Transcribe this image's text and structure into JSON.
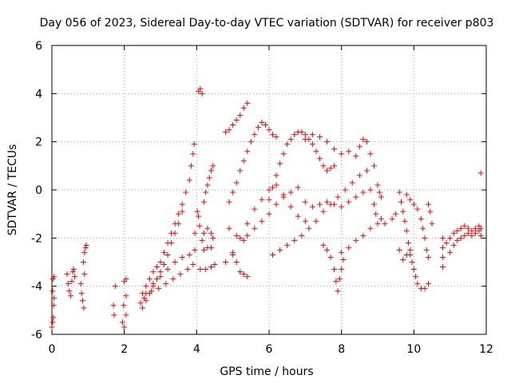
{
  "chart_data": {
    "type": "scatter",
    "title": "Day 056 of 2023, Sidereal Day-to-day VTEC variation (SDTVAR) for receiver p803",
    "xlabel": "GPS time / hours",
    "ylabel": "SDTVAR / TECUs",
    "xlim": [
      0,
      12
    ],
    "ylim": [
      -6,
      6
    ],
    "x_ticks": [
      "0",
      "2",
      "4",
      "6",
      "8",
      "10",
      "12"
    ],
    "y_ticks": [
      "-6",
      "-4",
      "-2",
      "0",
      "2",
      "4",
      "6"
    ],
    "grid": true,
    "marker": "plus",
    "point_color": "#ff0000",
    "series": [
      {
        "points": [
          [
            0.0,
            -5.7
          ],
          [
            0.02,
            -5.5
          ],
          [
            0.04,
            -5.3
          ],
          [
            0.05,
            -4.8
          ],
          [
            0.06,
            -4.5
          ],
          [
            0.02,
            -4.2
          ],
          [
            0.03,
            -3.7
          ],
          [
            0.06,
            -3.6
          ],
          [
            0.42,
            -3.5
          ],
          [
            0.45,
            -3.9
          ],
          [
            0.48,
            -4.2
          ],
          [
            0.52,
            -4.4
          ],
          [
            0.55,
            -3.8
          ],
          [
            0.58,
            -3.4
          ],
          [
            0.6,
            -3.3
          ],
          [
            0.63,
            -3.6
          ],
          [
            0.8,
            -3.9
          ],
          [
            0.82,
            -4.3
          ],
          [
            0.85,
            -4.6
          ],
          [
            0.88,
            -4.9
          ],
          [
            0.9,
            -3.5
          ],
          [
            0.87,
            -3.0
          ],
          [
            0.9,
            -2.6
          ],
          [
            0.93,
            -2.4
          ],
          [
            0.95,
            -2.3
          ],
          [
            1.75,
            -4.0
          ],
          [
            1.7,
            -4.8
          ],
          [
            1.72,
            -5.2
          ],
          [
            1.95,
            -5.5
          ],
          [
            2.0,
            -5.7
          ],
          [
            2.05,
            -5.2
          ],
          [
            1.98,
            -4.8
          ],
          [
            2.05,
            -4.4
          ],
          [
            2.0,
            -3.8
          ],
          [
            2.05,
            -3.7
          ],
          [
            2.45,
            -4.7
          ],
          [
            2.5,
            -4.3
          ],
          [
            2.6,
            -4.0
          ],
          [
            2.7,
            -3.7
          ],
          [
            2.8,
            -3.4
          ],
          [
            2.9,
            -3.2
          ],
          [
            3.0,
            -3.0
          ],
          [
            3.1,
            -2.6
          ],
          [
            3.2,
            -2.2
          ],
          [
            3.3,
            -1.8
          ],
          [
            3.4,
            -1.4
          ],
          [
            3.5,
            -1.0
          ],
          [
            3.6,
            -0.6
          ],
          [
            3.7,
            -0.1
          ],
          [
            3.8,
            0.4
          ],
          [
            3.85,
            1.0
          ],
          [
            3.9,
            1.5
          ],
          [
            3.93,
            1.9
          ],
          [
            2.5,
            -4.9
          ],
          [
            2.6,
            -4.6
          ],
          [
            2.7,
            -4.3
          ],
          [
            2.8,
            -4.0
          ],
          [
            2.9,
            -3.7
          ],
          [
            3.0,
            -3.4
          ],
          [
            3.1,
            -3.1
          ],
          [
            3.2,
            -2.7
          ],
          [
            3.3,
            -2.2
          ],
          [
            3.4,
            -1.8
          ],
          [
            3.5,
            -1.4
          ],
          [
            3.6,
            -0.9
          ],
          [
            2.6,
            -4.3
          ],
          [
            2.8,
            -3.9
          ],
          [
            3.0,
            -3.6
          ],
          [
            3.2,
            -3.3
          ],
          [
            3.4,
            -3.0
          ],
          [
            3.6,
            -2.8
          ],
          [
            3.8,
            -2.7
          ],
          [
            3.95,
            -2.5
          ],
          [
            3.95,
            -1.8
          ],
          [
            2.55,
            -4.5
          ],
          [
            2.75,
            -4.2
          ],
          [
            2.95,
            -4.1
          ],
          [
            3.15,
            -3.9
          ],
          [
            3.35,
            -3.7
          ],
          [
            3.55,
            -3.5
          ],
          [
            3.75,
            -3.3
          ],
          [
            3.9,
            -3.1
          ],
          [
            4.05,
            4.1
          ],
          [
            4.1,
            4.2
          ],
          [
            4.15,
            4.0
          ],
          [
            4.02,
            -0.9
          ],
          [
            4.05,
            -1.1
          ],
          [
            4.08,
            -1.5
          ],
          [
            4.15,
            -2.1
          ],
          [
            4.2,
            -1.8
          ],
          [
            4.3,
            -1.6
          ],
          [
            4.4,
            -1.8
          ],
          [
            4.45,
            -2.0
          ],
          [
            4.2,
            -2.5
          ],
          [
            4.3,
            -2.4
          ],
          [
            4.4,
            -2.4
          ],
          [
            4.1,
            -3.3
          ],
          [
            4.25,
            -3.3
          ],
          [
            4.4,
            -3.2
          ],
          [
            4.5,
            -3.1
          ],
          [
            4.2,
            -0.5
          ],
          [
            4.25,
            -0.1
          ],
          [
            4.3,
            0.2
          ],
          [
            4.35,
            0.5
          ],
          [
            4.4,
            0.8
          ],
          [
            4.45,
            1.0
          ],
          [
            4.8,
            2.4
          ],
          [
            4.9,
            2.5
          ],
          [
            5.0,
            2.7
          ],
          [
            5.1,
            2.9
          ],
          [
            5.2,
            3.1
          ],
          [
            5.3,
            3.4
          ],
          [
            5.4,
            3.6
          ],
          [
            4.9,
            -0.5
          ],
          [
            5.0,
            -0.1
          ],
          [
            5.1,
            0.3
          ],
          [
            5.2,
            0.8
          ],
          [
            5.3,
            1.2
          ],
          [
            5.4,
            1.6
          ],
          [
            5.5,
            2.0
          ],
          [
            5.6,
            2.3
          ],
          [
            5.7,
            2.6
          ],
          [
            5.8,
            2.8
          ],
          [
            5.9,
            2.7
          ],
          [
            6.0,
            2.5
          ],
          [
            6.1,
            2.3
          ],
          [
            6.2,
            2.2
          ],
          [
            4.8,
            -3.0
          ],
          [
            5.0,
            -2.7
          ],
          [
            5.1,
            -3.0
          ],
          [
            5.2,
            -3.4
          ],
          [
            5.3,
            -3.5
          ],
          [
            5.4,
            -3.6
          ],
          [
            4.9,
            -1.6
          ],
          [
            5.1,
            -1.9
          ],
          [
            5.3,
            -2.1
          ],
          [
            5.4,
            -1.9
          ],
          [
            5.6,
            -1.6
          ],
          [
            5.8,
            -1.3
          ],
          [
            6.0,
            -1.0
          ],
          [
            6.2,
            -0.6
          ],
          [
            6.4,
            -0.3
          ],
          [
            6.6,
            -0.1
          ],
          [
            6.8,
            0.1
          ],
          [
            5.0,
            -2.6
          ],
          [
            5.2,
            -2.0
          ],
          [
            5.4,
            -1.4
          ],
          [
            5.6,
            -0.8
          ],
          [
            5.8,
            -0.4
          ],
          [
            6.0,
            0.0
          ],
          [
            6.2,
            0.2
          ],
          [
            6.4,
            -0.2
          ],
          [
            6.6,
            -0.7
          ],
          [
            6.8,
            -1.1
          ],
          [
            7.0,
            -1.3
          ],
          [
            6.0,
            -0.4
          ],
          [
            6.1,
            0.1
          ],
          [
            6.2,
            0.6
          ],
          [
            6.3,
            1.1
          ],
          [
            6.4,
            1.5
          ],
          [
            6.5,
            1.9
          ],
          [
            6.6,
            2.1
          ],
          [
            6.7,
            2.3
          ],
          [
            6.8,
            2.4
          ],
          [
            6.9,
            2.4
          ],
          [
            7.0,
            2.3
          ],
          [
            7.1,
            2.1
          ],
          [
            7.2,
            1.9
          ],
          [
            7.3,
            1.6
          ],
          [
            7.4,
            1.3
          ],
          [
            7.5,
            1.0
          ],
          [
            7.6,
            0.8
          ],
          [
            7.7,
            0.9
          ],
          [
            7.8,
            1.0
          ],
          [
            6.1,
            -2.7
          ],
          [
            6.3,
            -2.5
          ],
          [
            6.5,
            -2.3
          ],
          [
            6.7,
            -2.1
          ],
          [
            6.9,
            -1.9
          ],
          [
            7.1,
            -1.6
          ],
          [
            7.3,
            -1.3
          ],
          [
            7.5,
            -0.9
          ],
          [
            7.7,
            -0.6
          ],
          [
            7.9,
            -0.3
          ],
          [
            8.1,
            0.0
          ],
          [
            8.3,
            0.3
          ],
          [
            8.5,
            0.6
          ],
          [
            8.7,
            0.8
          ],
          [
            8.9,
            1.0
          ],
          [
            7.0,
            2.1
          ],
          [
            7.2,
            2.3
          ],
          [
            7.4,
            2.2
          ],
          [
            7.6,
            2.0
          ],
          [
            7.8,
            1.7
          ],
          [
            8.0,
            1.5
          ],
          [
            8.2,
            1.6
          ],
          [
            8.4,
            1.4
          ],
          [
            8.5,
            1.8
          ],
          [
            8.6,
            2.1
          ],
          [
            8.7,
            2.0
          ],
          [
            8.8,
            1.5
          ],
          [
            7.5,
            -2.3
          ],
          [
            7.6,
            -2.5
          ],
          [
            7.7,
            -2.8
          ],
          [
            7.8,
            -3.3
          ],
          [
            7.85,
            -3.8
          ],
          [
            7.9,
            -4.2
          ],
          [
            7.95,
            -3.7
          ],
          [
            8.0,
            -3.3
          ],
          [
            8.05,
            -2.9
          ],
          [
            8.0,
            -2.6
          ],
          [
            8.2,
            -2.4
          ],
          [
            8.4,
            -2.1
          ],
          [
            8.6,
            -1.9
          ],
          [
            8.8,
            -1.6
          ],
          [
            9.0,
            -1.4
          ],
          [
            9.1,
            -1.2
          ],
          [
            7.0,
            -0.5
          ],
          [
            7.2,
            -0.7
          ],
          [
            7.4,
            -0.6
          ],
          [
            7.6,
            -0.5
          ],
          [
            7.8,
            -0.6
          ],
          [
            8.0,
            -0.7
          ],
          [
            8.2,
            -0.5
          ],
          [
            8.4,
            -0.3
          ],
          [
            8.6,
            -0.1
          ],
          [
            8.8,
            0.0
          ],
          [
            9.0,
            0.2
          ],
          [
            9.05,
            -0.1
          ],
          [
            9.1,
            -0.3
          ],
          [
            8.9,
            -0.6
          ],
          [
            8.95,
            -1.0
          ],
          [
            9.2,
            -1.4
          ],
          [
            9.4,
            -1.2
          ],
          [
            9.5,
            -1.0
          ],
          [
            9.6,
            -0.1
          ],
          [
            9.65,
            -0.5
          ],
          [
            9.7,
            -0.9
          ],
          [
            9.75,
            -1.3
          ],
          [
            9.8,
            -1.7
          ],
          [
            9.85,
            -2.2
          ],
          [
            9.9,
            -2.7
          ],
          [
            9.95,
            -3.0
          ],
          [
            10.0,
            -3.3
          ],
          [
            10.05,
            -3.6
          ],
          [
            10.1,
            -3.9
          ],
          [
            10.2,
            -4.1
          ],
          [
            10.3,
            -4.1
          ],
          [
            10.4,
            -3.9
          ],
          [
            9.8,
            -0.2
          ],
          [
            9.9,
            -0.4
          ],
          [
            10.0,
            -0.6
          ],
          [
            10.1,
            -0.8
          ],
          [
            10.2,
            -1.2
          ],
          [
            10.25,
            -1.6
          ],
          [
            10.3,
            -2.0
          ],
          [
            10.35,
            -2.5
          ],
          [
            10.4,
            -2.8
          ],
          [
            9.6,
            -2.5
          ],
          [
            9.7,
            -2.9
          ],
          [
            9.8,
            -2.7
          ],
          [
            9.9,
            -2.5
          ],
          [
            10.4,
            -0.6
          ],
          [
            10.45,
            -0.9
          ],
          [
            10.5,
            -1.4
          ],
          [
            10.8,
            -2.0
          ],
          [
            10.8,
            -2.4
          ],
          [
            10.8,
            -2.8
          ],
          [
            10.8,
            -3.2
          ],
          [
            10.9,
            -2.2
          ],
          [
            11.0,
            -2.0
          ],
          [
            11.1,
            -1.8
          ],
          [
            11.2,
            -1.7
          ],
          [
            11.3,
            -1.6
          ],
          [
            11.4,
            -1.5
          ],
          [
            11.5,
            -1.6
          ],
          [
            11.6,
            -1.7
          ],
          [
            11.7,
            -1.6
          ],
          [
            11.8,
            -1.5
          ],
          [
            11.85,
            -1.6
          ],
          [
            11.0,
            -2.6
          ],
          [
            11.1,
            -2.3
          ],
          [
            11.2,
            -2.1
          ],
          [
            11.3,
            -2.0
          ],
          [
            11.4,
            -1.9
          ],
          [
            11.5,
            -1.8
          ],
          [
            11.6,
            -1.9
          ],
          [
            11.7,
            -1.8
          ],
          [
            11.8,
            -1.7
          ],
          [
            11.85,
            -1.9
          ],
          [
            11.85,
            0.7
          ]
        ]
      }
    ]
  }
}
